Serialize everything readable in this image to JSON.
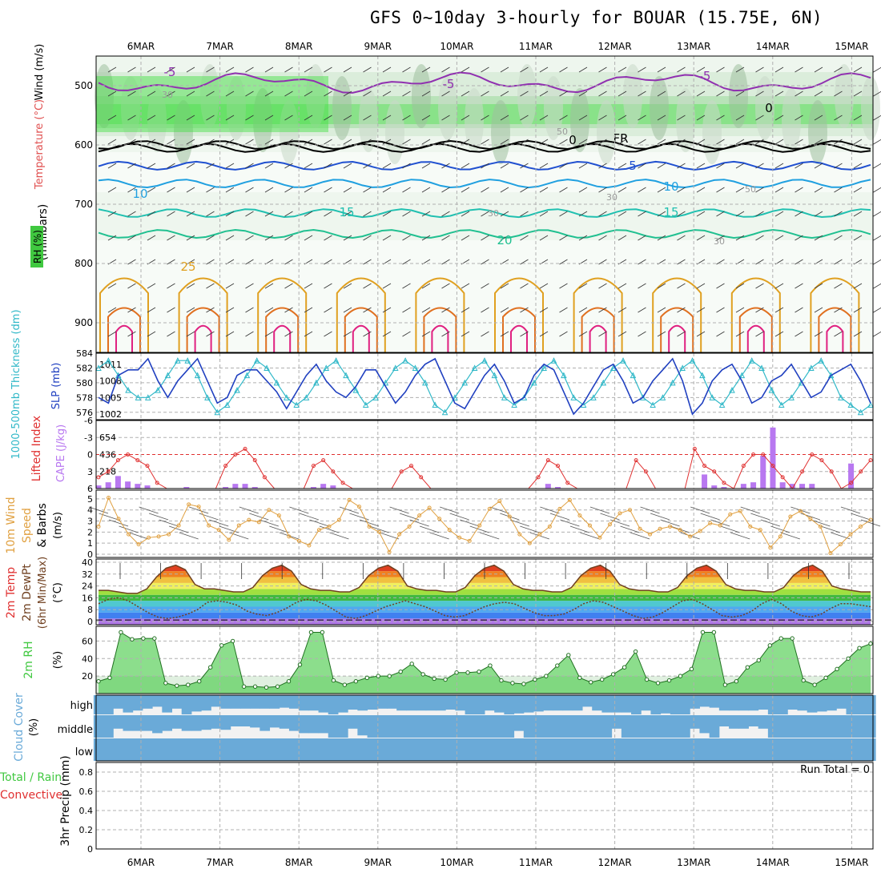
{
  "title": "GFS 0~10day 3-hourly for BOUAR (15.75E, 6N)",
  "dates": [
    "6MAR",
    "7MAR",
    "8MAR",
    "9MAR",
    "10MAR",
    "11MAR",
    "12MAR",
    "13MAR",
    "14MAR",
    "15MAR"
  ],
  "colors": {
    "grid": "#b0b0b0",
    "slp": "#2040c0",
    "thickness": "#30b8c8",
    "lifted": "#e03030",
    "cape": "#b878f0",
    "wind": "#e0a040",
    "rh_fill": "#40c840",
    "cloud": "#6aaad8",
    "precip_total": "#40c840",
    "precip_conv": "#e03030"
  },
  "panels": {
    "upper": {
      "ylabel_temperature": "Temperature (°C)",
      "ylabel_wind": "Wind (m/s)",
      "ylabel_units": "(millibars)",
      "legend_rh": "RH (%)",
      "ticks": [
        "500",
        "600",
        "700",
        "800",
        "900"
      ],
      "isotherm_labels": [
        "-5",
        "-5",
        "-5",
        "0",
        "0",
        "FR",
        "5",
        "10",
        "10",
        "15",
        "15",
        "20",
        "25"
      ],
      "rh_labels": [
        "30",
        "50",
        "30",
        "30",
        "30",
        "50"
      ]
    },
    "slp": {
      "ylabel_thickness": "1000-500mb Thickness (dm)",
      "ylabel_slp": "SLP (mb)",
      "ticks_left": [
        "584",
        "582",
        "580",
        "578",
        "576"
      ],
      "ticks_right": [
        "1011",
        "1008",
        "1005",
        "1002"
      ]
    },
    "li": {
      "ylabel_li": "Lifted Index",
      "ylabel_cape": "CAPE (J/kg)",
      "ticks_left": [
        "-6",
        "-3",
        "0",
        "3",
        "6"
      ],
      "ticks_right": [
        "654",
        "436",
        "218"
      ]
    },
    "wind10": {
      "ylabel_a": "10m Wind",
      "ylabel_b": "Speed",
      "ylabel_c": "& Barbs",
      "ylabel_units": "(m/s)",
      "ticks": [
        "5",
        "4",
        "3",
        "2",
        "1",
        "0"
      ]
    },
    "temp2m": {
      "ylabel_a": "2m Temp",
      "ylabel_b": "2m DewPt",
      "ylabel_c": "(6hr Min/Max)",
      "ylabel_units": "(°C)",
      "ticks": [
        "40",
        "32",
        "24",
        "16",
        "8",
        "0"
      ]
    },
    "rh2m": {
      "ylabel": "2m RH",
      "ylabel_units": "(%)",
      "ticks": [
        "60",
        "40",
        "20"
      ]
    },
    "cloud": {
      "ylabel": "Cloud Cover",
      "ylabel_units": "(%)",
      "levels": [
        "high",
        "middle",
        "low"
      ]
    },
    "precip": {
      "ylabel_a": "Total / Rain",
      "ylabel_b": "Convective",
      "ylabel_c": "3hr Precip (mm)",
      "ticks": [
        "0.8",
        "0.6",
        "0.4",
        "0.2",
        "0"
      ],
      "run_total": "Run Total = 0"
    }
  },
  "chart_data": [
    {
      "type": "line",
      "title": "SLP and 1000-500mb thickness",
      "x_unit": "hours from 06MAR00",
      "series": [
        {
          "name": "SLP (mb)",
          "values": [
            1005,
            1004,
            1009,
            1010,
            1010,
            1012,
            1008,
            1005,
            1008,
            1010,
            1012,
            1008,
            1004,
            1005,
            1009,
            1010,
            1010,
            1008,
            1006,
            1003,
            1006,
            1009,
            1011,
            1008,
            1006,
            1005,
            1007,
            1010,
            1010,
            1007,
            1004,
            1006,
            1009,
            1011,
            1012,
            1008,
            1004,
            1003,
            1006,
            1009,
            1011,
            1008,
            1004,
            1005,
            1009,
            1011,
            1010,
            1006,
            1002,
            1004,
            1007,
            1010,
            1011,
            1008,
            1004,
            1005,
            1008,
            1010,
            1012,
            1008,
            1002,
            1004,
            1008,
            1010,
            1011,
            1008,
            1004,
            1005,
            1008,
            1009,
            1011,
            1008,
            1005,
            1006,
            1009,
            1010,
            1011,
            1008,
            1004
          ]
        },
        {
          "name": "Thickness (dm)",
          "values": [
            582,
            583,
            581,
            579,
            578,
            578,
            579,
            581,
            583,
            583,
            581,
            578,
            576,
            577,
            579,
            581,
            583,
            582,
            580,
            578,
            577,
            578,
            580,
            582,
            583,
            581,
            579,
            577,
            578,
            580,
            582,
            583,
            582,
            580,
            577,
            576,
            578,
            580,
            582,
            583,
            581,
            578,
            577,
            578,
            580,
            582,
            583,
            581,
            578,
            577,
            578,
            580,
            582,
            583,
            581,
            578,
            577,
            578,
            580,
            582,
            583,
            581,
            578,
            577,
            579,
            581,
            583,
            582,
            579,
            577,
            578,
            580,
            582,
            583,
            581,
            578,
            577,
            576,
            577
          ]
        }
      ],
      "ylim_thickness": [
        575,
        584
      ],
      "ylim_slp": [
        1001,
        1013
      ]
    },
    {
      "type": "bar",
      "title": "Lifted Index / CAPE",
      "series": [
        {
          "name": "Lifted Index",
          "values": [
            4,
            3,
            1,
            0,
            1,
            2,
            5,
            6,
            6,
            6,
            6,
            6,
            6,
            2,
            0,
            -1,
            1,
            4,
            6,
            6,
            6,
            6,
            2,
            1,
            3,
            5,
            6,
            6,
            6,
            6,
            6,
            3,
            2,
            4,
            6,
            6,
            6,
            6,
            6,
            6,
            6,
            6,
            6,
            6,
            6,
            4,
            1,
            2,
            5,
            6,
            6,
            6,
            6,
            6,
            6,
            1,
            3,
            6,
            6,
            6,
            6,
            -1,
            2,
            3,
            5,
            6,
            2,
            0,
            0,
            2,
            4,
            6,
            3,
            0,
            1,
            3,
            6,
            5,
            3,
            1
          ]
        },
        {
          "name": "CAPE (J/kg)",
          "values": [
            40,
            80,
            160,
            90,
            60,
            40,
            0,
            0,
            0,
            20,
            0,
            0,
            0,
            20,
            60,
            60,
            20,
            0,
            0,
            0,
            0,
            0,
            20,
            60,
            40,
            0,
            0,
            0,
            0,
            0,
            0,
            0,
            0,
            0,
            0,
            0,
            0,
            0,
            0,
            0,
            0,
            0,
            0,
            0,
            0,
            0,
            60,
            20,
            0,
            0,
            0,
            0,
            0,
            0,
            0,
            0,
            0,
            0,
            0,
            0,
            0,
            0,
            180,
            40,
            20,
            0,
            60,
            80,
            420,
            780,
            80,
            60,
            60,
            60,
            0,
            0,
            0,
            320,
            0,
            0
          ]
        }
      ],
      "ylim_li": [
        6,
        -6
      ],
      "ylim_cape": [
        0,
        870
      ]
    },
    {
      "type": "line",
      "title": "10m Wind Speed",
      "series": [
        {
          "name": "10m Wind Speed (m/s)",
          "values": [
            2.5,
            5.1,
            3.2,
            1.8,
            0.9,
            1.5,
            1.6,
            1.8,
            2.6,
            4.5,
            4.3,
            2.6,
            2.2,
            1.3,
            2.6,
            3.1,
            2.9,
            4.0,
            3.5,
            1.6,
            1.2,
            0.8,
            2.2,
            2.5,
            3.1,
            4.9,
            4.3,
            2.5,
            2.0,
            0.2,
            1.8,
            2.5,
            3.5,
            4.2,
            3.2,
            2.2,
            1.5,
            1.2,
            2.6,
            4.1,
            4.8,
            3.4,
            1.8,
            1.0,
            1.8,
            2.5,
            4.1,
            4.9,
            3.5,
            2.6,
            1.5,
            2.7,
            3.7,
            4.0,
            2.3,
            1.8,
            2.3,
            2.5,
            2.2,
            1.6,
            2.1,
            2.8,
            2.6,
            3.6,
            3.9,
            2.5,
            2.2,
            0.6,
            1.6,
            3.4,
            3.9,
            3.2,
            2.5,
            0.1,
            0.9,
            1.8,
            2.5,
            3.1
          ]
        }
      ],
      "ylim": [
        0,
        5.5
      ]
    },
    {
      "type": "area",
      "title": "2m Temp / DewPt",
      "series": [
        {
          "name": "2m Temp (°C)",
          "values": [
            21,
            21,
            20,
            19,
            19,
            22,
            30,
            36,
            38,
            35,
            25,
            22,
            22,
            21,
            20,
            20,
            23,
            31,
            36,
            38,
            34,
            25,
            22,
            21,
            21,
            20,
            20,
            23,
            31,
            36,
            38,
            34,
            24,
            22,
            21,
            21,
            20,
            20,
            23,
            31,
            36,
            38,
            34,
            25,
            22,
            21,
            21,
            20,
            20,
            23,
            31,
            36,
            38,
            34,
            25,
            22,
            21,
            21,
            20,
            20,
            23,
            31,
            36,
            38,
            34,
            25,
            22,
            21,
            21,
            20,
            20,
            23,
            31,
            36,
            38,
            34,
            24,
            22,
            21,
            20,
            20
          ]
        },
        {
          "name": "2m DewPt (°C)",
          "values": [
            12,
            15,
            16,
            14,
            10,
            6,
            3,
            2,
            3,
            5,
            8,
            13,
            14,
            13,
            11,
            7,
            5,
            4,
            6,
            9,
            13,
            15,
            14,
            11,
            7,
            3,
            2,
            4,
            7,
            10,
            12,
            14,
            12,
            10,
            7,
            4,
            3,
            4,
            7,
            10,
            12,
            13,
            12,
            9,
            6,
            4,
            4,
            5,
            8,
            12,
            14,
            13,
            10,
            7,
            4,
            2,
            3,
            6,
            10,
            14,
            15,
            12,
            8,
            4,
            3,
            4,
            7,
            12,
            15,
            12,
            7,
            4,
            3,
            5,
            9,
            12,
            12,
            11,
            10
          ]
        }
      ],
      "ylim": [
        0,
        40
      ]
    },
    {
      "type": "area",
      "title": "2m RH",
      "series": [
        {
          "name": "2m RH (%)",
          "values": [
            14,
            18,
            70,
            62,
            63,
            63,
            12,
            9,
            10,
            14,
            30,
            55,
            60,
            8,
            8,
            7,
            8,
            14,
            33,
            70,
            70,
            15,
            10,
            14,
            18,
            20,
            20,
            25,
            34,
            22,
            17,
            16,
            24,
            24,
            25,
            32,
            15,
            12,
            11,
            16,
            20,
            32,
            44,
            18,
            13,
            16,
            22,
            30,
            48,
            16,
            12,
            15,
            20,
            28,
            70,
            70,
            10,
            14,
            30,
            38,
            55,
            63,
            63,
            15,
            10,
            18,
            28,
            40,
            52,
            57
          ]
        }
      ],
      "ylim": [
        0,
        75
      ]
    },
    {
      "type": "bar",
      "title": "Cloud Cover",
      "series": [
        {
          "name": "high",
          "values": [
            100,
            100,
            70,
            90,
            80,
            70,
            60,
            90,
            70,
            100,
            85,
            80,
            60,
            70,
            70,
            70,
            70,
            70,
            70,
            65,
            70,
            80,
            80,
            90,
            100,
            90,
            75,
            80,
            75,
            70,
            70,
            80,
            80,
            80,
            80,
            80,
            75,
            80,
            100,
            100,
            80,
            90,
            100,
            95,
            90,
            85,
            80,
            80,
            80,
            80,
            60,
            80,
            90,
            90,
            90,
            100,
            80,
            100,
            95,
            100,
            100,
            70,
            60,
            65,
            80,
            80,
            80,
            80,
            75,
            100,
            100,
            75,
            80,
            90,
            85,
            80,
            70,
            100,
            100,
            100
          ]
        },
        {
          "name": "middle",
          "values": [
            100,
            100,
            60,
            70,
            70,
            70,
            80,
            70,
            60,
            70,
            70,
            65,
            60,
            65,
            50,
            50,
            55,
            70,
            55,
            60,
            70,
            80,
            80,
            80,
            100,
            100,
            60,
            90,
            100,
            100,
            100,
            100,
            100,
            100,
            100,
            100,
            100,
            100,
            100,
            100,
            100,
            100,
            100,
            70,
            100,
            100,
            100,
            100,
            100,
            100,
            100,
            100,
            100,
            60,
            100,
            100,
            100,
            100,
            100,
            100,
            100,
            60,
            80,
            100,
            50,
            60,
            60,
            50,
            60,
            100,
            100,
            100,
            100,
            100,
            100,
            100,
            100,
            100,
            100,
            100
          ]
        },
        {
          "name": "low",
          "values": [
            100,
            100,
            100,
            100,
            100,
            100,
            100,
            100,
            100,
            100,
            100,
            100,
            100,
            100,
            100,
            100,
            100,
            100,
            100,
            100,
            100,
            100,
            100,
            100,
            100,
            100,
            100,
            100,
            100,
            100,
            100,
            100,
            100,
            100,
            100,
            100,
            100,
            100,
            100,
            100,
            100,
            100,
            100,
            100,
            100,
            100,
            100,
            100,
            100,
            100,
            100,
            100,
            100,
            100,
            100,
            100,
            100,
            100,
            100,
            100,
            100,
            100,
            100,
            100,
            100,
            100,
            100,
            100,
            100,
            100,
            100,
            100,
            100,
            100,
            100,
            100,
            100,
            100,
            100,
            100
          ]
        }
      ],
      "ylim": [
        0,
        100
      ]
    },
    {
      "type": "bar",
      "title": "3hr Precip",
      "series": [
        {
          "name": "3hr Precip (mm)",
          "values": []
        }
      ],
      "ylim": [
        0,
        0.9
      ]
    }
  ]
}
